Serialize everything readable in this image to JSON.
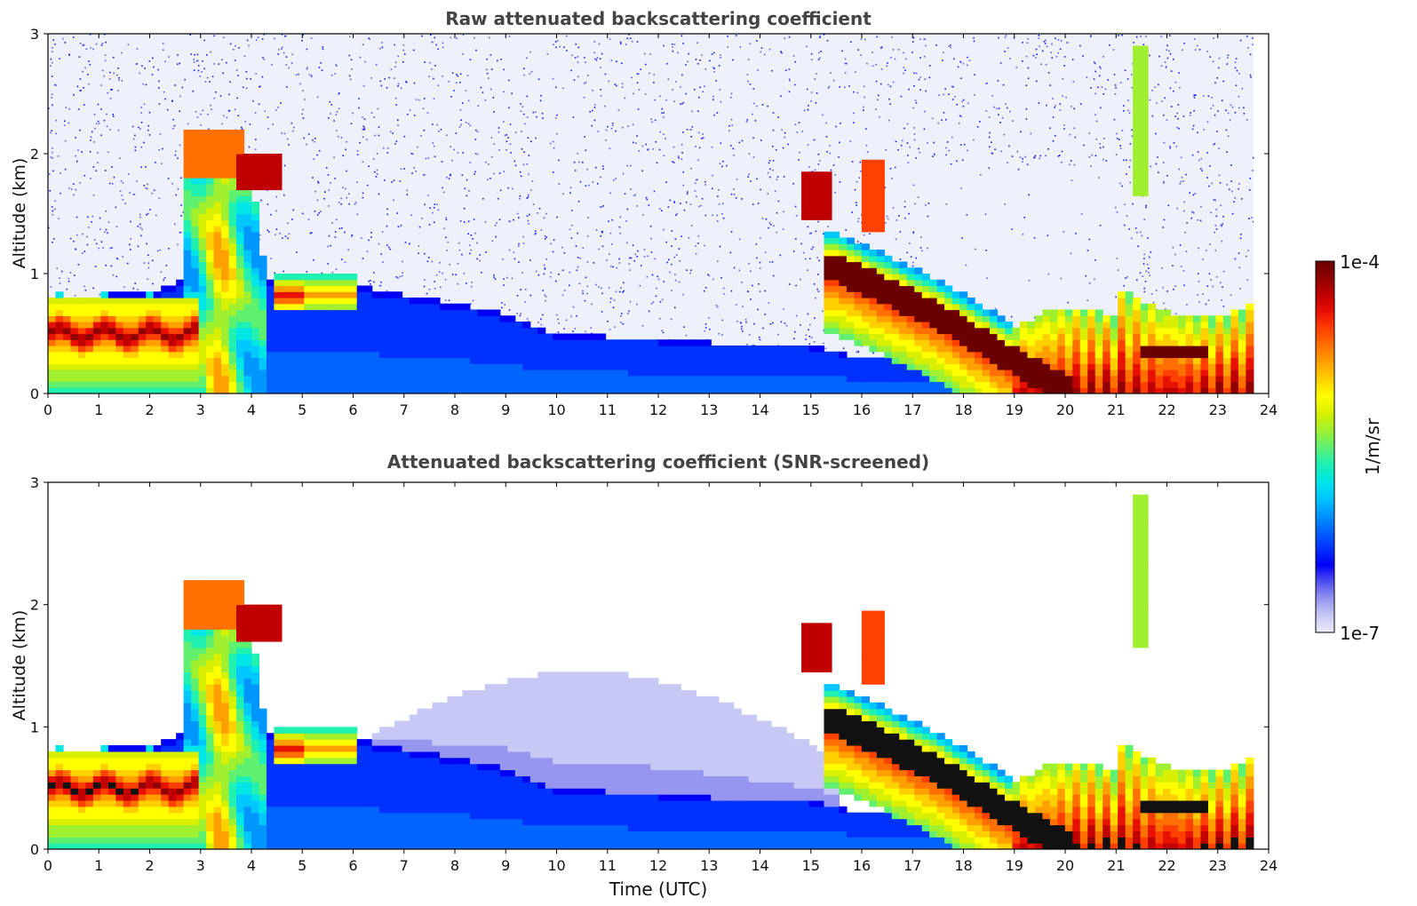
{
  "chart_data": [
    {
      "type": "heatmap",
      "title": "Raw attenuated backscattering coefficient",
      "xlabel": "",
      "ylabel": "Altitude (km)",
      "xlim": [
        0,
        24
      ],
      "ylim": [
        0,
        3
      ],
      "xticks": [
        "0",
        "1",
        "2",
        "3",
        "4",
        "5",
        "6",
        "7",
        "8",
        "9",
        "10",
        "11",
        "12",
        "13",
        "14",
        "15",
        "16",
        "17",
        "18",
        "19",
        "20",
        "21",
        "22",
        "23",
        "24"
      ],
      "yticks": [
        "0",
        "1",
        "2",
        "3"
      ],
      "noise_above_boundary_layer": true,
      "data_end_hour": 23.7,
      "features": [
        {
          "name": "boundary layer aerosol top",
          "points": [
            [
              0,
              0.8
            ],
            [
              2,
              0.85
            ],
            [
              2.7,
              0.95
            ],
            [
              4.5,
              0.95
            ],
            [
              6,
              0.9
            ],
            [
              8,
              0.75
            ],
            [
              8.7,
              0.7
            ],
            [
              10,
              0.5
            ],
            [
              12,
              0.45
            ],
            [
              14,
              0.4
            ],
            [
              15,
              0.4
            ],
            [
              16,
              0.3
            ],
            [
              17,
              0.3
            ]
          ]
        },
        {
          "name": "early low cloud layer",
          "hours": [
            0,
            2.8
          ],
          "altitude_km": [
            0.3,
            0.7
          ],
          "intensity": "high"
        },
        {
          "name": "plume 3-4 UTC",
          "hours": [
            2.6,
            4.3
          ],
          "altitude_km": [
            0,
            2.2
          ],
          "intensity": "moderate"
        },
        {
          "name": "cloud near 2 km",
          "hours": [
            3.8,
            4.5
          ],
          "altitude_km": [
            1.75,
            1.95
          ],
          "intensity": "high"
        },
        {
          "name": "aerosol layer 4.5-6 UTC",
          "hours": [
            4.4,
            6
          ],
          "altitude_km": [
            0.7,
            0.95
          ],
          "intensity": "moderate-high"
        },
        {
          "name": "cloud 15 UTC",
          "hours": [
            14.9,
            15.4
          ],
          "altitude_km": [
            1.5,
            1.8
          ],
          "intensity": "high"
        },
        {
          "name": "cloud 16 UTC",
          "hours": [
            16.1,
            16.4
          ],
          "altitude_km": [
            1.4,
            1.9
          ],
          "intensity": "high"
        },
        {
          "name": "descending layer",
          "points": [
            [
              15.5,
              1.05
            ],
            [
              16.5,
              0.85
            ],
            [
              17.5,
              0.65
            ],
            [
              18.5,
              0.4
            ],
            [
              19.5,
              0.15
            ],
            [
              20,
              0.05
            ]
          ],
          "intensity": "very high"
        },
        {
          "name": "evening mixed layer",
          "hours": [
            19,
            23.7
          ],
          "altitude_km": [
            0,
            1.0
          ],
          "intensity": "moderate-high"
        },
        {
          "name": "thin cloud 21.5 UTC",
          "hours": [
            21.4,
            21.6
          ],
          "altitude_km": [
            1.7,
            2.9
          ],
          "intensity": "moderate"
        }
      ]
    },
    {
      "type": "heatmap",
      "title": "Attenuated backscattering coefficient (SNR-screened)",
      "xlabel": "Time (UTC)",
      "ylabel": "Altitude (km)",
      "xlim": [
        0,
        24
      ],
      "ylim": [
        0,
        3
      ],
      "xticks": [
        "0",
        "1",
        "2",
        "3",
        "4",
        "5",
        "6",
        "7",
        "8",
        "9",
        "10",
        "11",
        "12",
        "13",
        "14",
        "15",
        "16",
        "17",
        "18",
        "19",
        "20",
        "21",
        "22",
        "23",
        "24"
      ],
      "yticks": [
        "0",
        "1",
        "2",
        "3"
      ],
      "noise_above_boundary_layer": false,
      "data_end_hour": 23.7,
      "features": [
        {
          "name": "boundary layer aerosol top",
          "points": [
            [
              0,
              0.8
            ],
            [
              2,
              0.85
            ],
            [
              2.7,
              0.95
            ],
            [
              4.5,
              0.95
            ],
            [
              6,
              0.9
            ],
            [
              8,
              0.75
            ],
            [
              8.7,
              0.7
            ],
            [
              10,
              0.5
            ],
            [
              12,
              0.45
            ],
            [
              14,
              0.4
            ],
            [
              15,
              0.4
            ],
            [
              16,
              0.3
            ],
            [
              17,
              0.3
            ]
          ]
        },
        {
          "name": "residual layer",
          "hours": [
            5.5,
            15.5
          ],
          "altitude_km": [
            0.3,
            1.5
          ],
          "intensity": "very low"
        },
        {
          "name": "early low cloud layer",
          "hours": [
            0,
            2.8
          ],
          "altitude_km": [
            0.3,
            0.7
          ],
          "intensity": "saturated"
        },
        {
          "name": "plume 3-4 UTC",
          "hours": [
            2.6,
            4.3
          ],
          "altitude_km": [
            0,
            2.2
          ],
          "intensity": "moderate"
        },
        {
          "name": "cloud near 2 km",
          "hours": [
            3.8,
            4.5
          ],
          "altitude_km": [
            1.75,
            1.95
          ],
          "intensity": "saturated"
        },
        {
          "name": "cloud 15 UTC",
          "hours": [
            14.9,
            15.4
          ],
          "altitude_km": [
            1.5,
            1.8
          ],
          "intensity": "saturated"
        },
        {
          "name": "descending layer",
          "points": [
            [
              15.5,
              1.05
            ],
            [
              16.5,
              0.85
            ],
            [
              17.5,
              0.65
            ],
            [
              18.5,
              0.4
            ],
            [
              19.5,
              0.15
            ],
            [
              20,
              0.05
            ]
          ],
          "intensity": "saturated"
        },
        {
          "name": "evening mixed layer",
          "hours": [
            19,
            23.7
          ],
          "altitude_km": [
            0,
            1.0
          ],
          "intensity": "moderate-high"
        },
        {
          "name": "thin cloud 21.5 UTC",
          "hours": [
            21.4,
            21.6
          ],
          "altitude_km": [
            1.7,
            2.9
          ],
          "intensity": "moderate"
        }
      ]
    }
  ],
  "colorbar": {
    "min_label": "1e-7",
    "max_label": "1e-4",
    "unit_label": "1/m/sr",
    "scale": "log",
    "colors": [
      "#ebebfa",
      "#c8c8f5",
      "#9696f0",
      "#5050f0",
      "#0000f5",
      "#0032ff",
      "#0064ff",
      "#0096ff",
      "#00c8ff",
      "#00e6e6",
      "#20f0b0",
      "#60f070",
      "#a0f030",
      "#d8f000",
      "#ffff00",
      "#ffd000",
      "#ffa000",
      "#ff7000",
      "#ff4000",
      "#e81000",
      "#c00000",
      "#900000",
      "#6a0000"
    ]
  }
}
